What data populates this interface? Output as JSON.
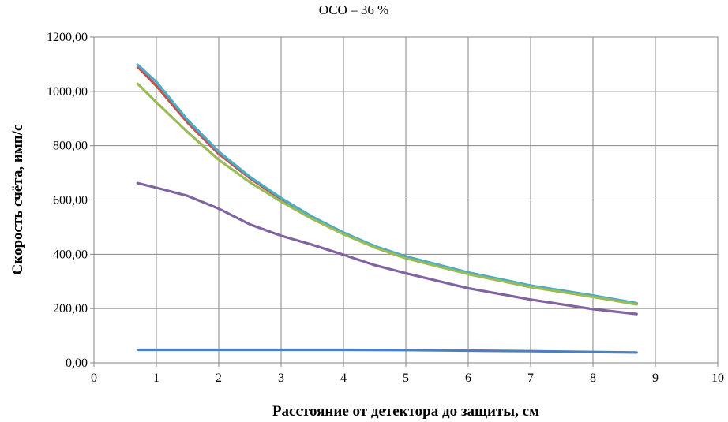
{
  "chart_data": {
    "type": "line",
    "title": "ОСО – 36 %",
    "xlabel": "Расстояние от детектора до защиты, см",
    "ylabel": "Скорость  счёта, имп/с",
    "xlim": [
      0,
      10
    ],
    "ylim": [
      0,
      1200
    ],
    "x_ticks": [
      "0",
      "1",
      "2",
      "3",
      "4",
      "5",
      "6",
      "7",
      "8",
      "9",
      "10"
    ],
    "y_ticks": [
      "0,00",
      "200,00",
      "400,00",
      "600,00",
      "800,00",
      "1000,00",
      "1200,00"
    ],
    "grid": true,
    "legend": "none",
    "series": [
      {
        "color": "#4e7fbf",
        "x": [
          0.7,
          1,
          2,
          3,
          4,
          5,
          6,
          7,
          8,
          8.7
        ],
        "y": [
          48,
          48,
          48,
          48,
          48,
          47,
          45,
          43,
          40,
          38
        ]
      },
      {
        "color": "#c0504d",
        "x": [
          0.7,
          1,
          1.5,
          2,
          2.5,
          3,
          3.5,
          4,
          4.5,
          5,
          6,
          7,
          8,
          8.7
        ],
        "y": [
          1090,
          1020,
          885,
          770,
          680,
          603,
          535,
          478,
          428,
          388,
          330,
          282,
          245,
          218
        ]
      },
      {
        "color": "#4bacc6",
        "x": [
          0.7,
          1,
          1.5,
          2,
          2.5,
          3,
          3.5,
          4,
          4.5,
          5,
          6,
          7,
          8,
          8.7
        ],
        "y": [
          1098,
          1035,
          895,
          778,
          685,
          607,
          538,
          480,
          430,
          392,
          333,
          285,
          248,
          220
        ]
      },
      {
        "color": "#9bbb59",
        "x": [
          0.7,
          1,
          1.5,
          2,
          2.5,
          3,
          3.5,
          4,
          4.5,
          5,
          6,
          7,
          8,
          8.7
        ],
        "y": [
          1028,
          960,
          850,
          748,
          665,
          594,
          530,
          474,
          425,
          385,
          327,
          279,
          243,
          215
        ]
      },
      {
        "color": "#8064a2",
        "x": [
          0.7,
          1,
          1.5,
          2,
          2.5,
          3,
          3.5,
          4,
          4.5,
          5,
          6,
          7,
          8,
          8.7
        ],
        "y": [
          662,
          645,
          615,
          568,
          510,
          468,
          435,
          398,
          360,
          330,
          275,
          233,
          198,
          180
        ]
      }
    ]
  }
}
